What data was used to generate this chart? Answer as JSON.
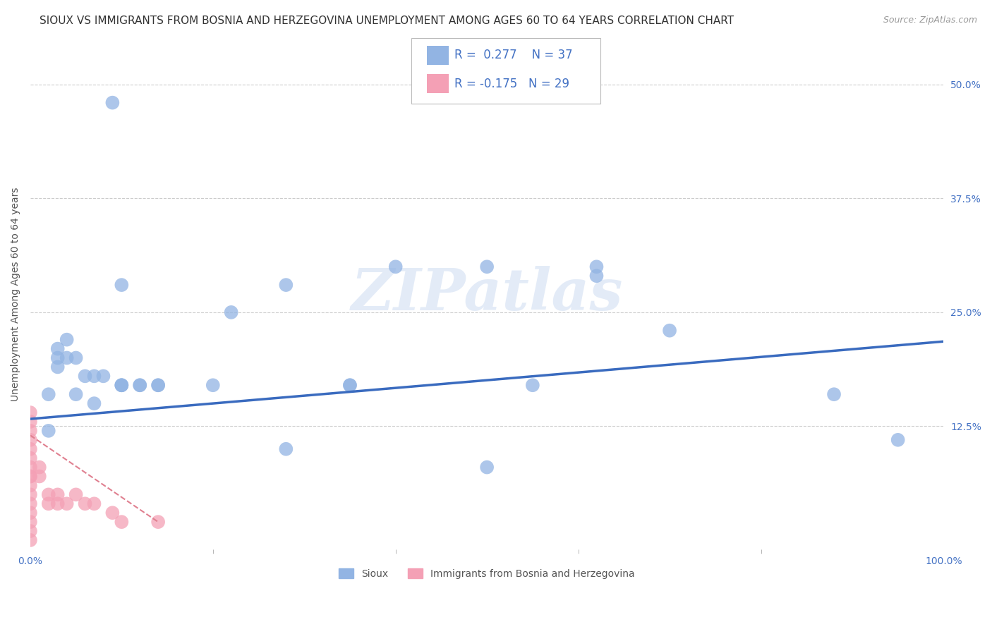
{
  "title": "SIOUX VS IMMIGRANTS FROM BOSNIA AND HERZEGOVINA UNEMPLOYMENT AMONG AGES 60 TO 64 YEARS CORRELATION CHART",
  "source": "Source: ZipAtlas.com",
  "ylabel": "Unemployment Among Ages 60 to 64 years",
  "xlim": [
    0.0,
    1.0
  ],
  "ylim": [
    -0.01,
    0.55
  ],
  "ytick_labels": [
    "12.5%",
    "25.0%",
    "37.5%",
    "50.0%"
  ],
  "ytick_positions": [
    0.125,
    0.25,
    0.375,
    0.5
  ],
  "sioux_color": "#92b4e3",
  "bosnia_color": "#f4a0b5",
  "sioux_line_color": "#3a6bbf",
  "bosnia_line_color": "#e08090",
  "legend_box_sioux_color": "#92b4e3",
  "legend_box_bosnia_color": "#f4a0b5",
  "R_sioux": 0.277,
  "N_sioux": 37,
  "R_bosnia": -0.175,
  "N_bosnia": 29,
  "sioux_x": [
    0.02,
    0.02,
    0.03,
    0.03,
    0.03,
    0.04,
    0.04,
    0.05,
    0.05,
    0.06,
    0.07,
    0.07,
    0.08,
    0.09,
    0.1,
    0.1,
    0.1,
    0.1,
    0.14,
    0.14,
    0.22,
    0.28,
    0.28,
    0.35,
    0.35,
    0.4,
    0.5,
    0.55,
    0.62,
    0.62,
    0.7,
    0.88,
    0.95,
    0.12,
    0.12,
    0.2,
    0.5
  ],
  "sioux_y": [
    0.16,
    0.12,
    0.2,
    0.21,
    0.19,
    0.2,
    0.22,
    0.16,
    0.2,
    0.18,
    0.18,
    0.15,
    0.18,
    0.48,
    0.17,
    0.17,
    0.17,
    0.28,
    0.17,
    0.17,
    0.25,
    0.28,
    0.1,
    0.17,
    0.17,
    0.3,
    0.3,
    0.17,
    0.29,
    0.3,
    0.23,
    0.16,
    0.11,
    0.17,
    0.17,
    0.17,
    0.08
  ],
  "bosnia_x": [
    0.0,
    0.0,
    0.0,
    0.0,
    0.0,
    0.0,
    0.0,
    0.0,
    0.0,
    0.0,
    0.0,
    0.0,
    0.0,
    0.0,
    0.0,
    0.0,
    0.01,
    0.01,
    0.02,
    0.02,
    0.03,
    0.03,
    0.04,
    0.05,
    0.06,
    0.07,
    0.09,
    0.1,
    0.14
  ],
  "bosnia_y": [
    0.14,
    0.13,
    0.12,
    0.11,
    0.1,
    0.09,
    0.08,
    0.07,
    0.07,
    0.06,
    0.05,
    0.04,
    0.03,
    0.02,
    0.01,
    0.0,
    0.08,
    0.07,
    0.05,
    0.04,
    0.05,
    0.04,
    0.04,
    0.05,
    0.04,
    0.04,
    0.03,
    0.02,
    0.02
  ],
  "sioux_line_x0": 0.0,
  "sioux_line_y0": 0.133,
  "sioux_line_x1": 1.0,
  "sioux_line_y1": 0.218,
  "bosnia_line_x0": 0.0,
  "bosnia_line_y0": 0.115,
  "bosnia_line_x1": 0.14,
  "bosnia_line_y1": 0.02,
  "watermark": "ZIPatlas",
  "title_fontsize": 11,
  "source_fontsize": 9,
  "label_fontsize": 10,
  "tick_fontsize": 10,
  "legend_fontsize": 12,
  "background_color": "#ffffff",
  "grid_color": "#cccccc",
  "label_color": "#555555",
  "title_color": "#333333",
  "legend_R_color": "#4472c4",
  "tick_color": "#4472c4"
}
